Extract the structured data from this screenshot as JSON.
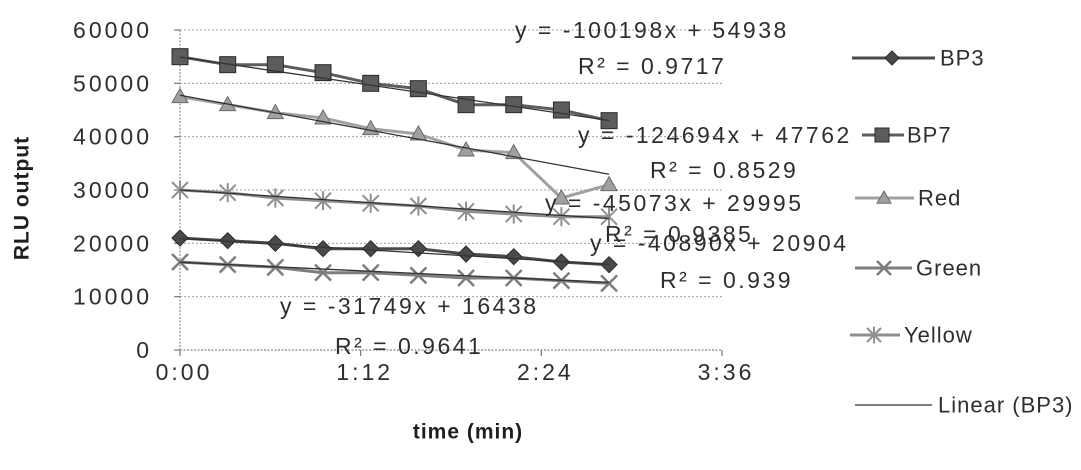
{
  "chart_data": {
    "type": "line",
    "xlabel": "time (min)",
    "ylabel": "RLU output",
    "xlim": [
      "0:00",
      "3:36"
    ],
    "ylim": [
      0,
      60000
    ],
    "x_ticks": [
      "0:00",
      "1:12",
      "2:24",
      "3:36"
    ],
    "y_ticks": [
      0,
      10000,
      20000,
      30000,
      40000,
      50000,
      60000
    ],
    "grid": true,
    "x": [
      "0:00",
      "0:19",
      "0:38",
      "0:57",
      "1:16",
      "1:35",
      "1:54",
      "2:13",
      "2:32",
      "2:51"
    ],
    "series": [
      {
        "name": "BP3",
        "marker": "diamond",
        "color": "#4a4a4a",
        "values": [
          21000,
          20500,
          20000,
          19000,
          19000,
          19000,
          18000,
          17500,
          16500,
          16000
        ]
      },
      {
        "name": "BP7",
        "marker": "square",
        "color": "#5c5c5c",
        "values": [
          55000,
          53500,
          53500,
          52000,
          50000,
          49000,
          46000,
          46000,
          45000,
          43000
        ]
      },
      {
        "name": "Red",
        "marker": "triangle",
        "color": "#a0a0a0",
        "values": [
          47500,
          46000,
          44500,
          43500,
          41500,
          40500,
          37500,
          37000,
          28500,
          31000
        ]
      },
      {
        "name": "Green",
        "marker": "x",
        "color": "#7d7d7d",
        "values": [
          16500,
          16000,
          15500,
          14500,
          14500,
          14000,
          13500,
          13500,
          13000,
          12500
        ]
      },
      {
        "name": "Yellow",
        "marker": "star",
        "color": "#8f8f8f",
        "values": [
          30000,
          29500,
          28500,
          28000,
          27500,
          27000,
          26000,
          25500,
          25000,
          25000
        ]
      }
    ],
    "trendlines": [
      {
        "series": "BP3",
        "equation": "y = -40890x + 20904",
        "r2": "R² = 0.939"
      },
      {
        "series": "BP7",
        "equation": "y = -100198x + 54938",
        "r2": "R² = 0.9717"
      },
      {
        "series": "Red",
        "equation": "y = -124694x + 47762",
        "r2": "R² = 0.8529"
      },
      {
        "series": "Green",
        "equation": "y = -31749x + 16438",
        "r2": "R² = 0.9641"
      },
      {
        "series": "Yellow",
        "equation": "y = -45073x + 29995",
        "r2": "R² = 0.9385"
      }
    ],
    "trendline_color": "#333333",
    "legend": {
      "position": "right",
      "trend_entry": "Linear (BP3)"
    }
  }
}
